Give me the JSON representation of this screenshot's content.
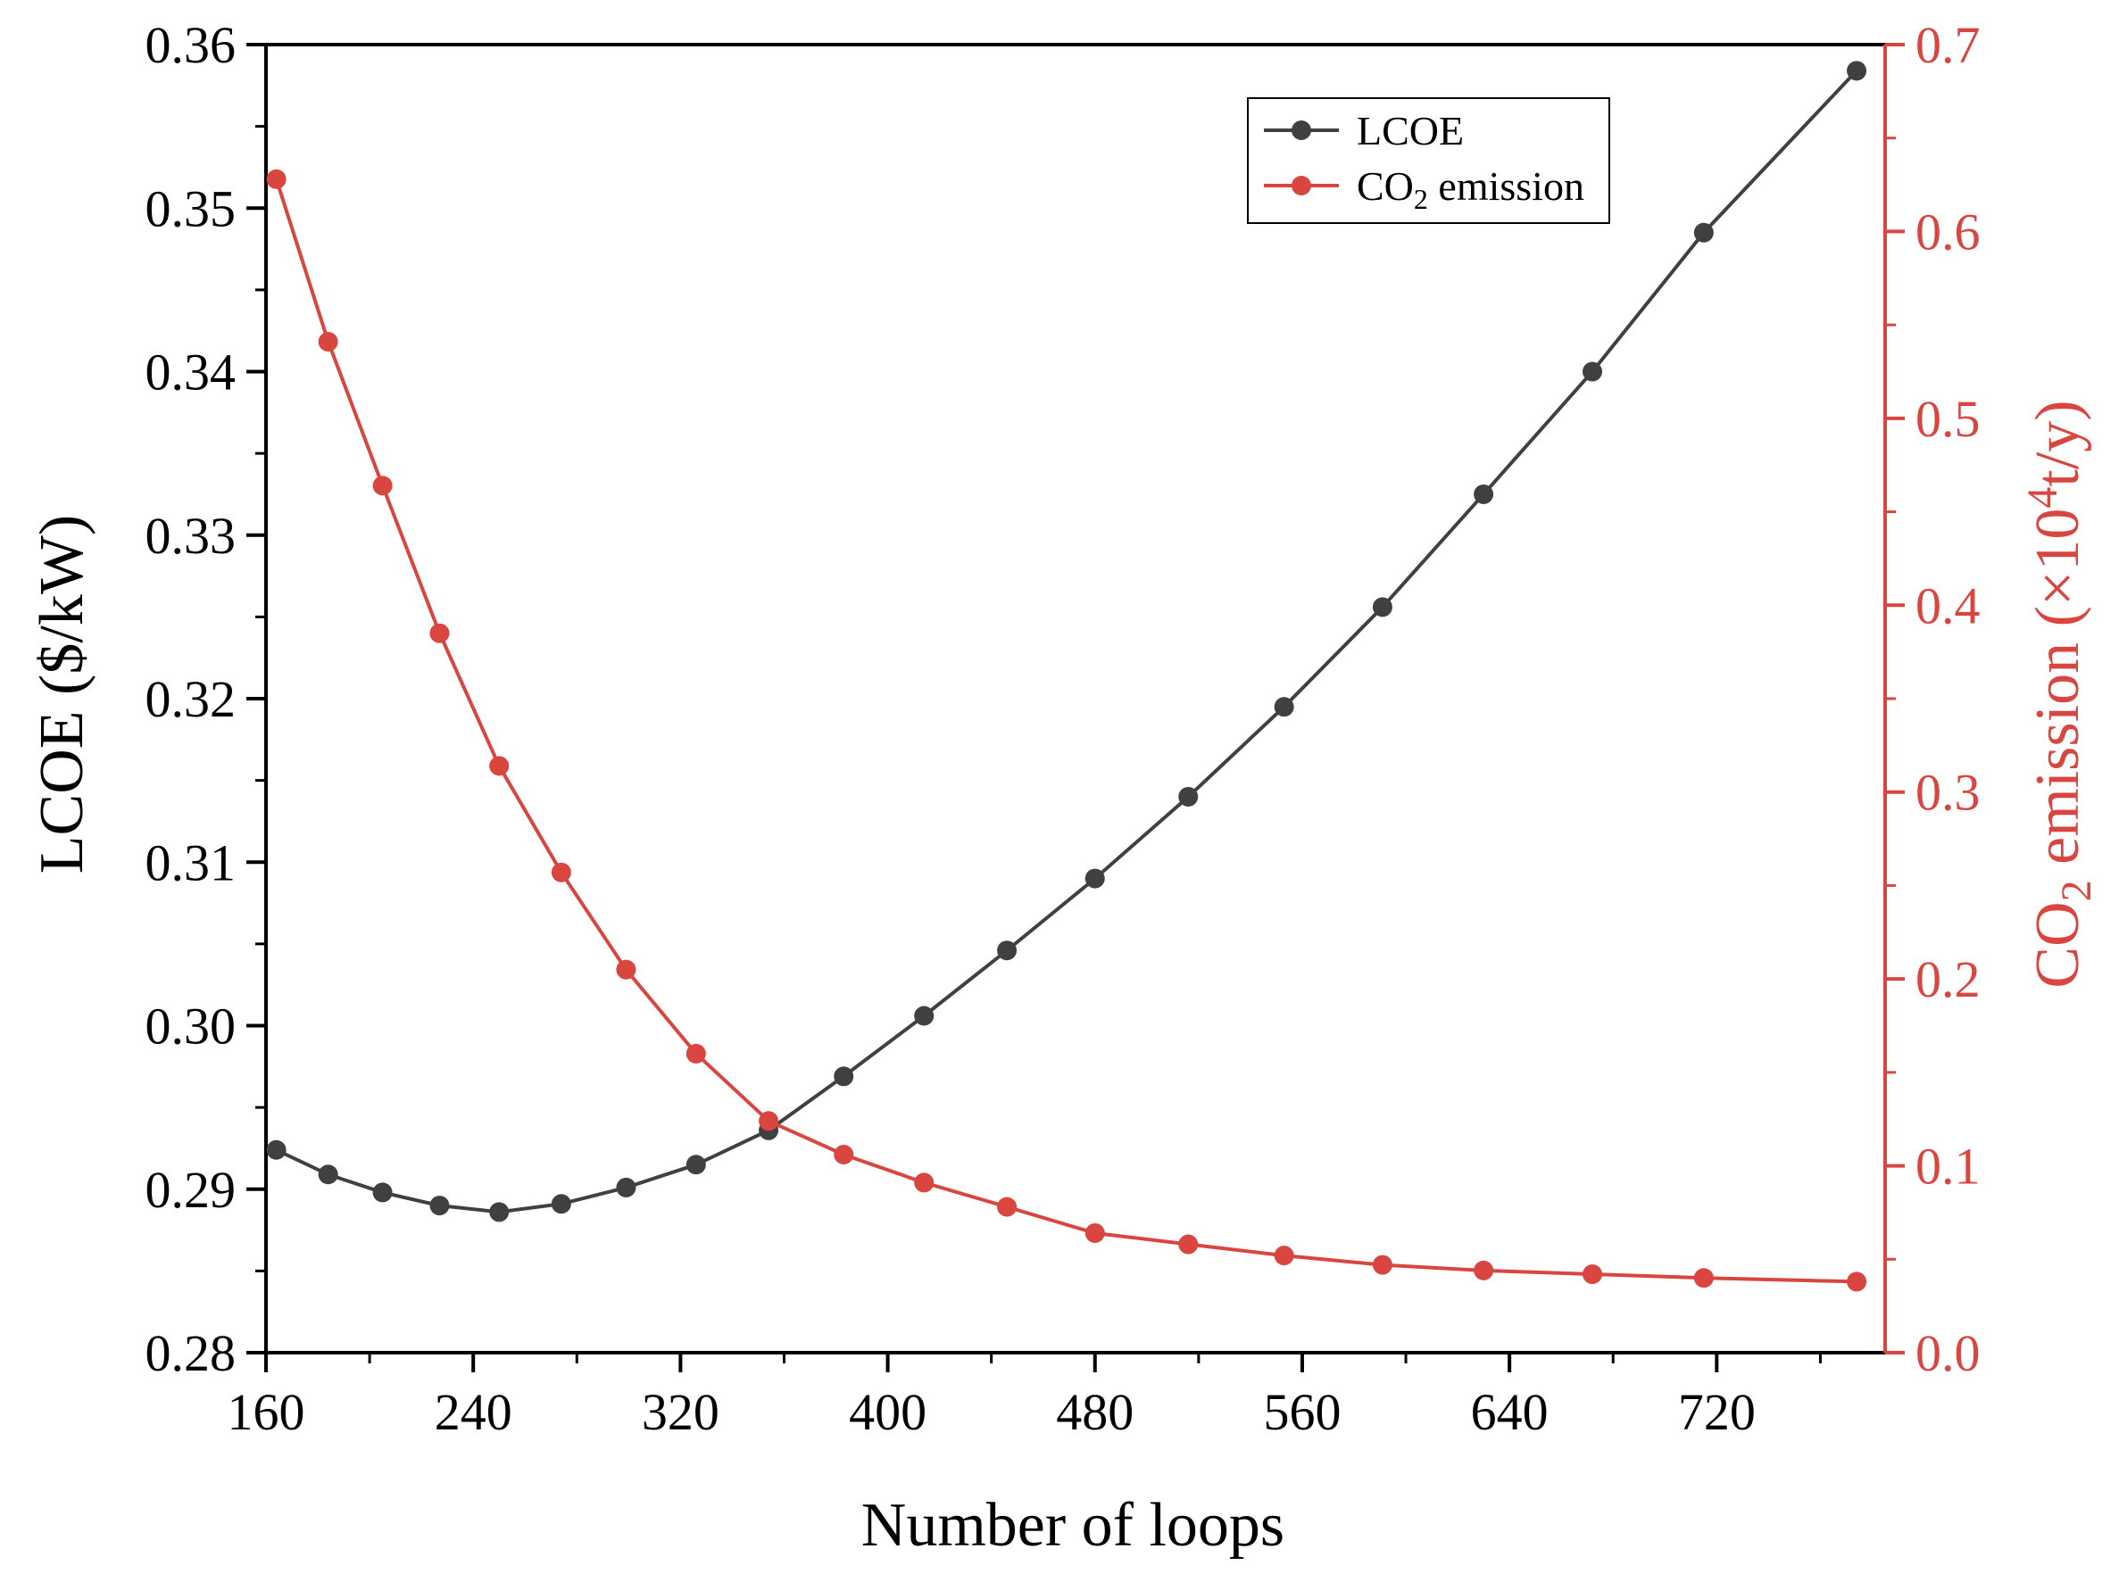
{
  "chart_data": {
    "type": "line",
    "title": "",
    "xlabel": "Number of loops",
    "x_ticks": [
      "160",
      "240",
      "320",
      "400",
      "480",
      "560",
      "640",
      "720"
    ],
    "xlim": [
      160,
      785
    ],
    "x": [
      164,
      184,
      205,
      227,
      250,
      274,
      299,
      326,
      354,
      383,
      414,
      446,
      480,
      516,
      553,
      591,
      630,
      672,
      715,
      774
    ],
    "axes": {
      "left": {
        "label_prefix": "LCOE ($/kW)",
        "ylim": [
          0.28,
          0.36
        ],
        "ticks": [
          "0.28",
          "0.29",
          "0.30",
          "0.31",
          "0.32",
          "0.33",
          "0.34",
          "0.35",
          "0.36"
        ]
      },
      "right": {
        "label_main": "CO",
        "label_sub": "2",
        "label_mid": " emission (×10",
        "label_sup": "4",
        "label_end": "t/y)",
        "ylim": [
          0.0,
          0.7
        ],
        "ticks": [
          "0.0",
          "0.1",
          "0.2",
          "0.3",
          "0.4",
          "0.5",
          "0.6",
          "0.7"
        ]
      }
    },
    "series": [
      {
        "name": "LCOE",
        "axis": "left",
        "color": "#404040",
        "values": [
          0.2924,
          0.2909,
          0.2898,
          0.289,
          0.2886,
          0.2891,
          0.2901,
          0.2915,
          0.2936,
          0.2969,
          0.3006,
          0.3046,
          0.309,
          0.314,
          0.3195,
          0.3256,
          0.3325,
          0.34,
          0.3485,
          0.3584
        ]
      },
      {
        "name": "CO",
        "name_sub": "2",
        "name_rest": " emission",
        "axis": "right",
        "color": "#d9463f",
        "values": [
          0.628,
          0.541,
          0.464,
          0.385,
          0.314,
          0.257,
          0.205,
          0.16,
          0.124,
          0.106,
          0.091,
          0.078,
          0.064,
          0.058,
          0.052,
          0.047,
          0.044,
          0.042,
          0.04,
          0.038
        ]
      }
    ],
    "legend_position": "top-right"
  }
}
